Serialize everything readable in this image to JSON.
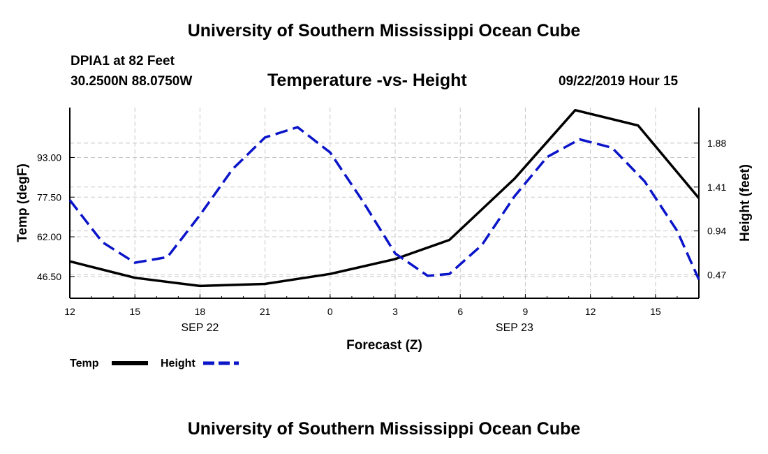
{
  "header": {
    "title": "University of Southern Mississippi Ocean Cube",
    "station": "DPIA1 at 82 Feet",
    "coords": "30.2500N 88.0750W",
    "chart_title": "Temperature -vs- Height",
    "date": "09/22/2019 Hour 15"
  },
  "footer": {
    "title": "University of Southern Mississippi Ocean Cube"
  },
  "chart_data": {
    "type": "line",
    "title": "Temperature -vs- Height",
    "xlabel": "Forecast (Z)",
    "ylabel_left": "Temp (degF)",
    "ylabel_right": "Height (feet)",
    "x_range_hours": [
      0,
      29
    ],
    "x_ticks": [
      {
        "h": 0,
        "label": "12"
      },
      {
        "h": 3,
        "label": "15"
      },
      {
        "h": 6,
        "label": "18"
      },
      {
        "h": 9,
        "label": "21"
      },
      {
        "h": 12,
        "label": "0"
      },
      {
        "h": 15,
        "label": "3"
      },
      {
        "h": 18,
        "label": "6"
      },
      {
        "h": 21,
        "label": "9"
      },
      {
        "h": 24,
        "label": "12"
      },
      {
        "h": 27,
        "label": "15"
      }
    ],
    "date_labels": [
      {
        "h": 6,
        "label": "SEP 22"
      },
      {
        "h": 20.5,
        "label": "SEP 23"
      }
    ],
    "left_axis": {
      "range": [
        38.0,
        112.5
      ],
      "ticks": [
        "46.50",
        "62.00",
        "77.50",
        "93.00"
      ],
      "tick_values": [
        46.5,
        62.0,
        77.5,
        93.0
      ]
    },
    "right_axis": {
      "range": [
        0.22,
        2.26
      ],
      "ticks": [
        "0.47",
        "0.94",
        "1.41",
        "1.88"
      ],
      "tick_values": [
        0.47,
        0.94,
        1.41,
        1.88
      ]
    },
    "grid": true,
    "series": [
      {
        "name": "Temp",
        "axis": "left",
        "color": "#000000",
        "style": "solid",
        "x": [
          0,
          3,
          6,
          9,
          12,
          15,
          17.5,
          20.5,
          23.3,
          26.2,
          29
        ],
        "y": [
          52.4,
          46.0,
          42.8,
          43.6,
          47.5,
          53.3,
          60.8,
          84.7,
          111.5,
          105.5,
          77.1
        ]
      },
      {
        "name": "Height",
        "axis": "right",
        "color": "#0a14c8",
        "style": "dashed",
        "x": [
          0,
          1.5,
          3,
          4.5,
          6,
          7.5,
          9,
          10.5,
          12,
          13.5,
          15,
          16.5,
          17.5,
          19,
          20.5,
          22,
          23.5,
          25,
          26.5,
          28,
          29
        ],
        "y": [
          1.27,
          0.82,
          0.6,
          0.66,
          1.11,
          1.6,
          1.94,
          2.05,
          1.78,
          1.26,
          0.7,
          0.46,
          0.48,
          0.79,
          1.31,
          1.73,
          1.92,
          1.83,
          1.47,
          0.94,
          0.42
        ]
      }
    ]
  },
  "legend": {
    "temp_label": "Temp",
    "height_label": "Height"
  }
}
